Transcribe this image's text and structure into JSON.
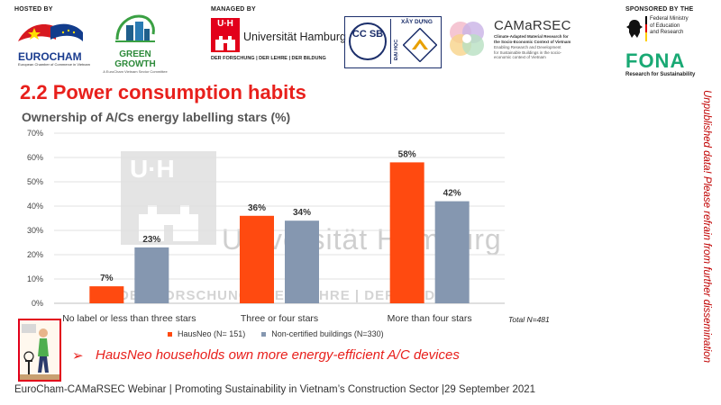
{
  "header": {
    "hosted_by": "HOSTED BY",
    "managed_by": "MANAGED BY",
    "sponsored_by": "SPONSORED BY THE",
    "eurocham": {
      "name": "EUROCHAM",
      "sub": "European Chamber of Commerce in Vietnam"
    },
    "greengrowth": {
      "name": "GREEN GROWTH",
      "sub": "A EuroCham Vietnam Sector Committee"
    },
    "uhh": {
      "mark": "U·H",
      "name": "Universität Hamburg",
      "sub": "DER FORSCHUNG | DER LEHRE | DER BILDUNG"
    },
    "ccsb": {
      "mark": "CC SB",
      "name": "XÂY DỰNG",
      "vertical": "ĐẠI HỌC"
    },
    "camarsec": {
      "name": "CAMaRSEC",
      "line1": "Climate-Adapted Material Research for",
      "line2": "the Socio-Economic Context of Vietnam",
      "line3": "Enabling Research and Development",
      "line4": "for Sustainable Buildings in the socio-",
      "line5": "economic context of Vietnam"
    },
    "bmbf": {
      "line1": "Federal Ministry",
      "line2": "of Education",
      "line3": "and Research"
    },
    "fona": {
      "name": "FONA",
      "sub": "Research for Sustainability"
    }
  },
  "slide": {
    "title": "2.2 Power consumption habits",
    "side_note": "Unpublished data! Please refrain  from further dissemination",
    "takeaway_arrow": "➢",
    "takeaway": "HausNeo households own more energy-efficient A/C devices",
    "footer": "EuroCham-CAMaRSEC Webinar | Promoting Sustainability in Vietnam’s Construction Sector |29 September 2021"
  },
  "watermark": {
    "mark": "U·H",
    "text": "Universität Hamburg",
    "sub": "DER FORSCHUNG | DER LEHRE | DER BILDUNG"
  },
  "chart_data": {
    "type": "bar",
    "title": "Ownership of A/Cs energy labelling stars (%)",
    "categories": [
      "No label or less than three stars",
      "Three or four stars",
      "More than four stars"
    ],
    "series": [
      {
        "name": "HausNeo (N= 151)",
        "values": [
          7,
          36,
          58
        ],
        "labels": [
          "7%",
          "36%",
          "58%"
        ]
      },
      {
        "name": "Non-certified buildings (N=330)",
        "values": [
          23,
          34,
          42
        ],
        "labels": [
          "23%",
          "34%",
          "42%"
        ]
      }
    ],
    "yticks": [
      "0%",
      "10%",
      "20%",
      "30%",
      "40%",
      "50%",
      "60%",
      "70%"
    ],
    "ylim": [
      0,
      70
    ],
    "grid": true,
    "legend": "bottom",
    "annotation": "Total N=481",
    "colors": {
      "HausNeo": "#ff4a10",
      "Non-certified": "#8597b0"
    }
  }
}
